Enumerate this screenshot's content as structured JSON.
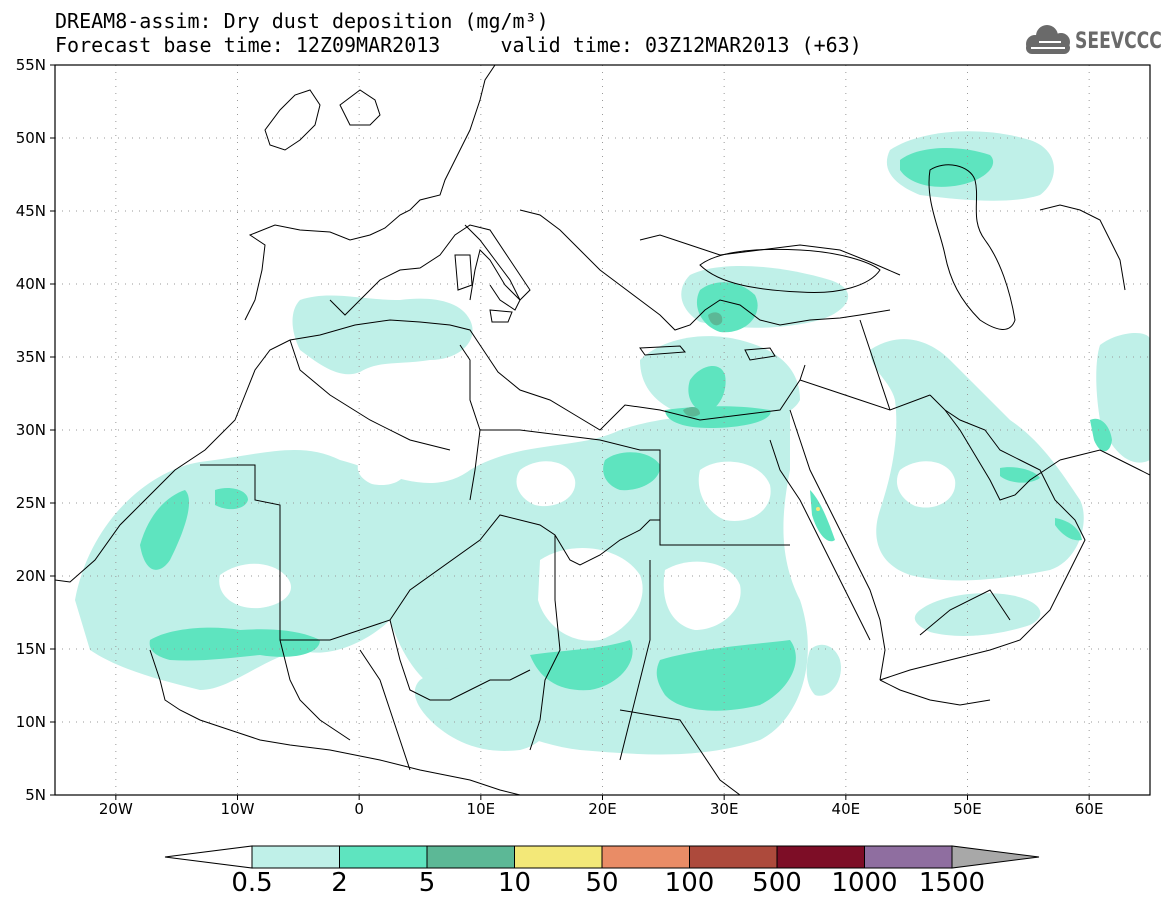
{
  "title": {
    "line1": "DREAM8-assim: Dry dust deposition (mg/m³)",
    "line2": "Forecast base time: 12Z09MAR2013     valid time: 03Z12MAR2013 (+63)"
  },
  "logo": {
    "text": "SEEVCCC",
    "icon": "cloud-icon"
  },
  "map": {
    "lon_range": [
      -25,
      65
    ],
    "lat_range": [
      5,
      55
    ],
    "lat_ticks": [
      "55N",
      "50N",
      "45N",
      "40N",
      "35N",
      "30N",
      "25N",
      "20N",
      "15N",
      "10N",
      "5N"
    ],
    "lon_ticks": [
      "20W",
      "10W",
      "0",
      "10E",
      "20E",
      "30E",
      "40E",
      "50E",
      "60E"
    ],
    "gridlines": "dotted"
  },
  "colorbar": {
    "labels": [
      "0.5",
      "2",
      "5",
      "10",
      "50",
      "100",
      "500",
      "1000",
      "1500"
    ],
    "colors": [
      "#bff0e8",
      "#5ee4bf",
      "#5cb896",
      "#f3e878",
      "#e98c66",
      "#ad4a3c",
      "#7d0d26",
      "#8f6ea0",
      "#a8a8a8"
    ]
  }
}
